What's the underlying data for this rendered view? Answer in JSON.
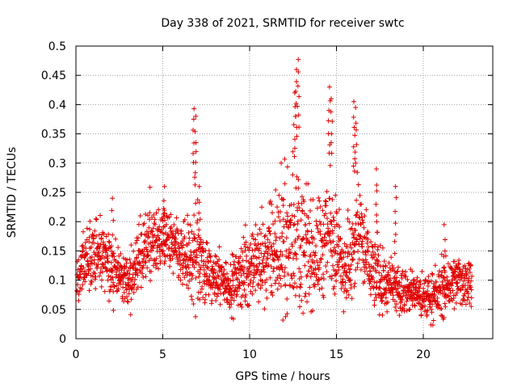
{
  "chart_data": {
    "type": "scatter",
    "title": "Day 338 of 2021, SRMTID for receiver swtc",
    "xlabel": "GPS time / hours",
    "ylabel": "SRMTID / TECUs",
    "xlim": [
      0,
      24
    ],
    "ylim": [
      0,
      0.5
    ],
    "xticks": [
      0,
      5,
      10,
      15,
      20
    ],
    "xtick_labels": [
      "0",
      "5",
      "10",
      "15",
      "20"
    ],
    "yticks": [
      0,
      0.05,
      0.1,
      0.15,
      0.2,
      0.25,
      0.3,
      0.35,
      0.4,
      0.45,
      0.5
    ],
    "ytick_labels": [
      "0",
      "0.05",
      "0.1",
      "0.15",
      "0.2",
      "0.25",
      "0.3",
      "0.35",
      "0.4",
      "0.45",
      "0.5"
    ],
    "grid": true,
    "marker": "+",
    "marker_color": "#e00000",
    "series": [
      {
        "name": "SRMTID",
        "x_start": 0.05,
        "x_end": 22.8,
        "points_per_hour": 90,
        "envelope": {
          "hours": [
            0,
            0.5,
            1,
            1.5,
            2,
            2.5,
            3,
            3.5,
            4,
            4.5,
            5,
            5.5,
            6,
            6.5,
            6.8,
            7,
            7.5,
            8,
            8.5,
            9,
            9.5,
            10,
            10.5,
            11,
            11.5,
            12,
            12.5,
            12.8,
            13,
            13.5,
            14,
            14.5,
            14.8,
            15,
            15.5,
            16,
            16.2,
            16.5,
            17,
            17.5,
            18,
            18.5,
            19,
            19.5,
            20,
            20.5,
            21,
            21.5,
            22,
            22.5,
            22.8
          ],
          "median": [
            0.1,
            0.13,
            0.14,
            0.14,
            0.12,
            0.11,
            0.1,
            0.12,
            0.15,
            0.17,
            0.17,
            0.16,
            0.14,
            0.13,
            0.15,
            0.14,
            0.11,
            0.1,
            0.1,
            0.09,
            0.11,
            0.12,
            0.13,
            0.14,
            0.15,
            0.16,
            0.17,
            0.18,
            0.16,
            0.14,
            0.15,
            0.17,
            0.19,
            0.15,
            0.12,
            0.14,
            0.2,
            0.16,
            0.12,
            0.1,
            0.09,
            0.08,
            0.08,
            0.08,
            0.07,
            0.07,
            0.08,
            0.09,
            0.1,
            0.1,
            0.1
          ],
          "spread": [
            0.05,
            0.06,
            0.07,
            0.06,
            0.06,
            0.05,
            0.05,
            0.06,
            0.07,
            0.06,
            0.06,
            0.06,
            0.06,
            0.08,
            0.12,
            0.1,
            0.06,
            0.05,
            0.05,
            0.05,
            0.06,
            0.07,
            0.07,
            0.09,
            0.1,
            0.12,
            0.14,
            0.14,
            0.12,
            0.09,
            0.1,
            0.12,
            0.12,
            0.09,
            0.07,
            0.1,
            0.12,
            0.09,
            0.07,
            0.06,
            0.05,
            0.05,
            0.04,
            0.04,
            0.04,
            0.04,
            0.05,
            0.05,
            0.05,
            0.05,
            0.05
          ]
        },
        "peaks": [
          {
            "x": 6.8,
            "y": 0.393
          },
          {
            "x": 6.9,
            "y": 0.38
          },
          {
            "x": 12.6,
            "y": 0.42
          },
          {
            "x": 12.7,
            "y": 0.46
          },
          {
            "x": 12.8,
            "y": 0.477
          },
          {
            "x": 14.6,
            "y": 0.43
          },
          {
            "x": 14.7,
            "y": 0.41
          },
          {
            "x": 16.0,
            "y": 0.405
          },
          {
            "x": 16.1,
            "y": 0.395
          },
          {
            "x": 7.1,
            "y": 0.26
          },
          {
            "x": 5.1,
            "y": 0.26
          },
          {
            "x": 2.1,
            "y": 0.24
          },
          {
            "x": 17.3,
            "y": 0.29
          },
          {
            "x": 18.4,
            "y": 0.26
          },
          {
            "x": 21.2,
            "y": 0.195
          }
        ]
      }
    ]
  }
}
